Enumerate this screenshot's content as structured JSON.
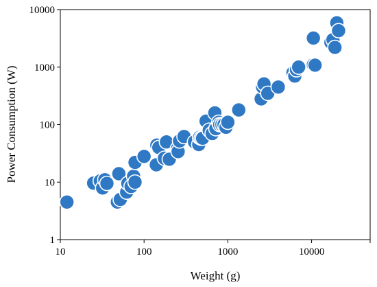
{
  "chart_data": {
    "type": "scatter",
    "title": "",
    "xlabel": "Weight (g)",
    "ylabel": "Power Consumption (W)",
    "x_scale": "log",
    "y_scale": "log",
    "xlim": [
      10,
      50000
    ],
    "ylim": [
      1,
      10000
    ],
    "x_ticks": [
      "10",
      "100",
      "1000",
      "10000"
    ],
    "y_ticks": [
      "1",
      "10",
      "100",
      "1000",
      "10000"
    ],
    "grid": false,
    "legend": "none",
    "marker_color": "#2F78C4",
    "marker_edge_color": "#ffffff",
    "points": [
      [
        12,
        4.5
      ],
      [
        25,
        9.6
      ],
      [
        30,
        10.5
      ],
      [
        32,
        7.9
      ],
      [
        34,
        11
      ],
      [
        36,
        9.5
      ],
      [
        48,
        4.5
      ],
      [
        50,
        14
      ],
      [
        52,
        5
      ],
      [
        62,
        6.7
      ],
      [
        64,
        9.5
      ],
      [
        70,
        8.4
      ],
      [
        75,
        12.7
      ],
      [
        78,
        10
      ],
      [
        78,
        22
      ],
      [
        100,
        28
      ],
      [
        140,
        20
      ],
      [
        142,
        44
      ],
      [
        150,
        40
      ],
      [
        175,
        26
      ],
      [
        185,
        50
      ],
      [
        200,
        25
      ],
      [
        250,
        38
      ],
      [
        255,
        34
      ],
      [
        265,
        52
      ],
      [
        300,
        62
      ],
      [
        400,
        50
      ],
      [
        450,
        45
      ],
      [
        460,
        60
      ],
      [
        480,
        58
      ],
      [
        500,
        58
      ],
      [
        550,
        115
      ],
      [
        600,
        80
      ],
      [
        650,
        70
      ],
      [
        700,
        160
      ],
      [
        720,
        85
      ],
      [
        780,
        110
      ],
      [
        800,
        100
      ],
      [
        850,
        100
      ],
      [
        900,
        100
      ],
      [
        950,
        90
      ],
      [
        1000,
        110
      ],
      [
        1350,
        180
      ],
      [
        2500,
        280
      ],
      [
        2600,
        450
      ],
      [
        2700,
        510
      ],
      [
        3000,
        350
      ],
      [
        4000,
        450
      ],
      [
        6000,
        800
      ],
      [
        6300,
        700
      ],
      [
        6600,
        900
      ],
      [
        7000,
        1000
      ],
      [
        10500,
        3200
      ],
      [
        10500,
        1100
      ],
      [
        11000,
        1080
      ],
      [
        17000,
        2700
      ],
      [
        18000,
        3000
      ],
      [
        19000,
        2200
      ],
      [
        20000,
        5900
      ],
      [
        21000,
        4300
      ]
    ]
  }
}
